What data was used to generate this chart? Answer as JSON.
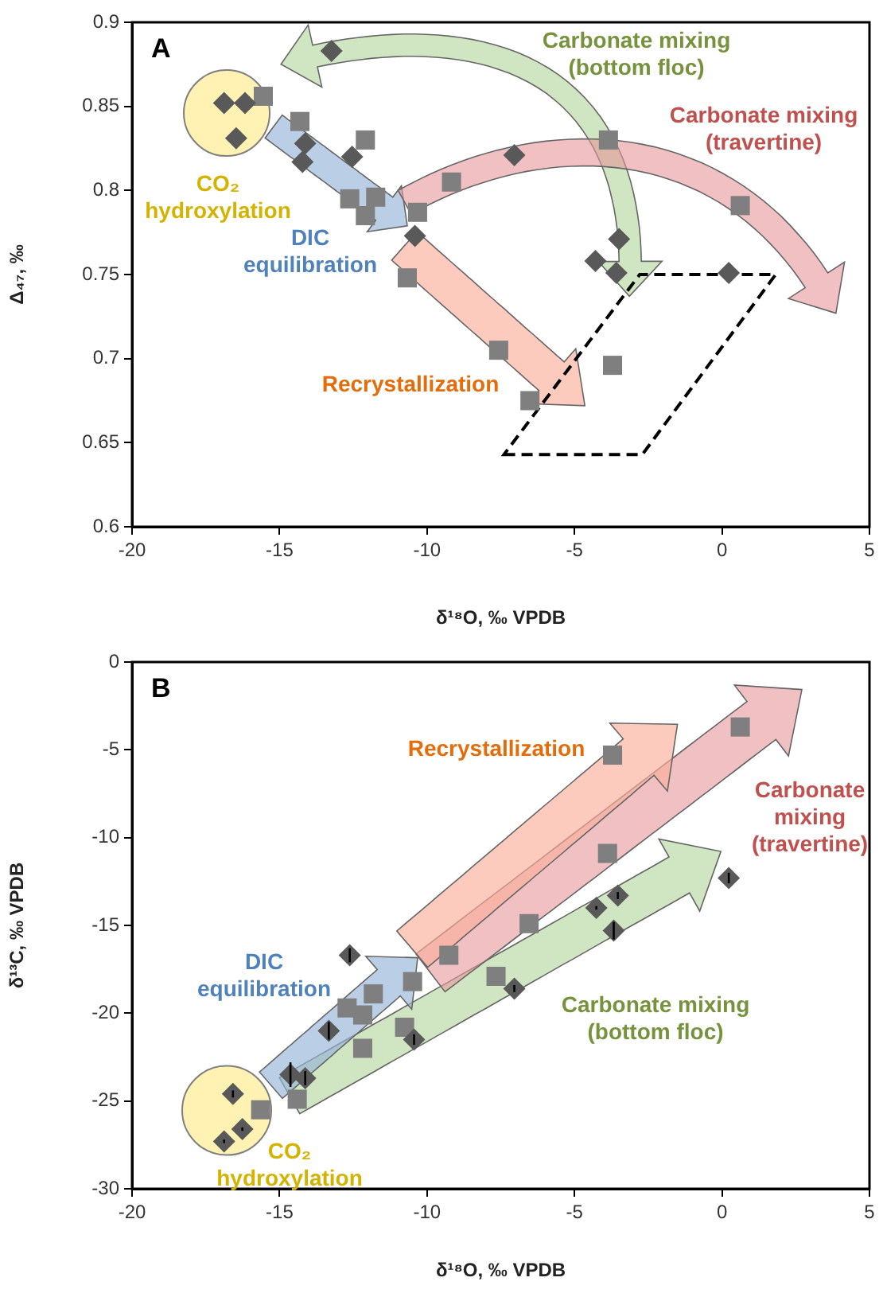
{
  "chart_data": [
    {
      "type": "scatter",
      "title": "A",
      "xlabel": "δ¹⁸O, ‰ VPDB",
      "ylabel": "Δ₄₇, ‰",
      "xlim": [
        -20,
        5
      ],
      "xticks": [
        -20,
        -15,
        -10,
        -5,
        0,
        5
      ],
      "ylim": [
        0.6,
        0.9
      ],
      "yticks": [
        0.6,
        0.65,
        0.7,
        0.75,
        0.8,
        0.85,
        0.9
      ],
      "series": [
        {
          "color": "#595959",
          "marker": "diamond",
          "x": [
            -13.24,
            -16.88,
            -16.17,
            -16.47,
            -14.13,
            -14.22,
            -12.54,
            -10.41,
            -7.04,
            -3.49,
            -4.29,
            -3.58,
            0.23
          ],
          "values": [
            0.883,
            0.852,
            0.852,
            0.831,
            0.828,
            0.817,
            0.82,
            0.773,
            0.821,
            0.771,
            0.758,
            0.751,
            0.751
          ]
        },
        {
          "color": "#7f7f7f",
          "marker": "square",
          "x": [
            -15.55,
            -14.31,
            -12.09,
            -12.62,
            -11.74,
            -12.09,
            -10.32,
            -10.67,
            -9.17,
            -3.85,
            0.62,
            -3.71,
            -7.57,
            -6.51
          ],
          "values": [
            0.856,
            0.841,
            0.83,
            0.795,
            0.796,
            0.785,
            0.787,
            0.748,
            0.805,
            0.83,
            0.791,
            0.696,
            0.705,
            0.675
          ]
        }
      ],
      "annotations": [
        "Carbonate mixing (bottom floc)",
        "Carbonate mixing (travertine)",
        "CO₂ hydroxylation",
        "DIC equilibration",
        "Recrystallization"
      ]
    },
    {
      "type": "scatter",
      "title": "B",
      "xlabel": "δ¹⁸O, ‰ VPDB",
      "ylabel": "δ¹³C, ‰ VPDB",
      "xlim": [
        -20,
        5
      ],
      "xticks": [
        -20,
        -15,
        -10,
        -5,
        0,
        5
      ],
      "ylim": [
        -30,
        0
      ],
      "yticks": [
        -30,
        -25,
        -20,
        -15,
        -10,
        -5,
        0
      ],
      "series": [
        {
          "color": "#595959",
          "marker": "diamond",
          "x": [
            -12.62,
            -13.33,
            -10.44,
            -14.63,
            -14.13,
            -16.58,
            -16.26,
            -16.88,
            0.23,
            -3.53,
            -4.26,
            -3.67,
            -7.04
          ],
          "values": [
            -16.7,
            -21.0,
            -21.5,
            -23.5,
            -23.7,
            -24.6,
            -26.6,
            -27.3,
            -12.3,
            -13.3,
            -14.0,
            -15.3,
            -18.6
          ],
          "errors": [
            0.4,
            0.5,
            0.3,
            0.7,
            0.4,
            0.2,
            0.1,
            0.1,
            0.3,
            0.2,
            0.1,
            0.5,
            0.2
          ]
        },
        {
          "color": "#7f7f7f",
          "marker": "square",
          "x": [
            -10.49,
            -11.82,
            -12.71,
            -12.18,
            -10.76,
            -12.18,
            -14.4,
            -15.64,
            -3.71,
            0.62,
            -3.88,
            -6.54,
            -9.26,
            -7.66
          ],
          "values": [
            -18.2,
            -18.9,
            -19.7,
            -20.1,
            -20.8,
            -22.0,
            -24.9,
            -25.5,
            -5.3,
            -3.7,
            -10.9,
            -14.9,
            -16.7,
            -17.9
          ]
        }
      ],
      "annotations": [
        "Recrystallization",
        "Carbonate mixing (travertine)",
        "DIC equilibration",
        "Carbonate mixing (bottom floc)",
        "CO₂ hydroxylation"
      ]
    }
  ]
}
